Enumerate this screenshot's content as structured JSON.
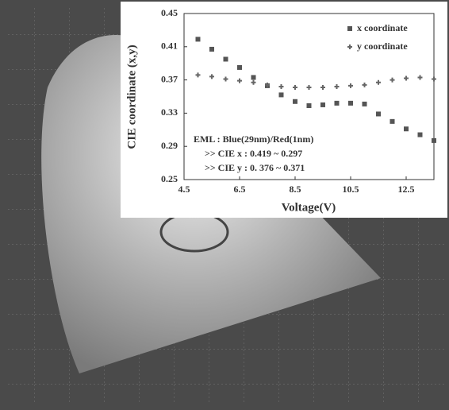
{
  "chart_data": {
    "type": "scatter",
    "x_label": "Voltage(V)",
    "y_label": "CIE coordinate (x,y)",
    "x": [
      5,
      5.5,
      6,
      6.5,
      7,
      7.5,
      8,
      8.5,
      9,
      9.5,
      10,
      10.5,
      11,
      11.5,
      12,
      12.5,
      13,
      13.5
    ],
    "series": [
      {
        "name": "x coordinate",
        "color": "#555555",
        "marker": "square",
        "values": [
          0.419,
          0.407,
          0.395,
          0.385,
          0.373,
          0.363,
          0.352,
          0.344,
          0.339,
          0.34,
          0.342,
          0.342,
          0.341,
          0.329,
          0.32,
          0.311,
          0.304,
          0.297
        ]
      },
      {
        "name": "y coordinate",
        "color": "#666666",
        "marker": "plus",
        "values": [
          0.376,
          0.374,
          0.371,
          0.369,
          0.367,
          0.364,
          0.362,
          0.361,
          0.361,
          0.361,
          0.362,
          0.363,
          0.364,
          0.367,
          0.37,
          0.372,
          0.373,
          0.371
        ]
      }
    ],
    "xlim": [
      4.5,
      13.5
    ],
    "xticks": [
      4.5,
      6.5,
      8.5,
      10.5,
      12.5
    ],
    "ylim": [
      0.25,
      0.45
    ],
    "yticks": [
      0.25,
      0.29,
      0.33,
      0.37,
      0.41,
      0.45
    ],
    "legend": "upper right",
    "annotations": [
      "EML : Blue(29nm)/Red(1nm)",
      ">> CIE x : 0.419 ~ 0.297",
      ">> CIE y : 0. 376 ~ 0.371"
    ]
  }
}
